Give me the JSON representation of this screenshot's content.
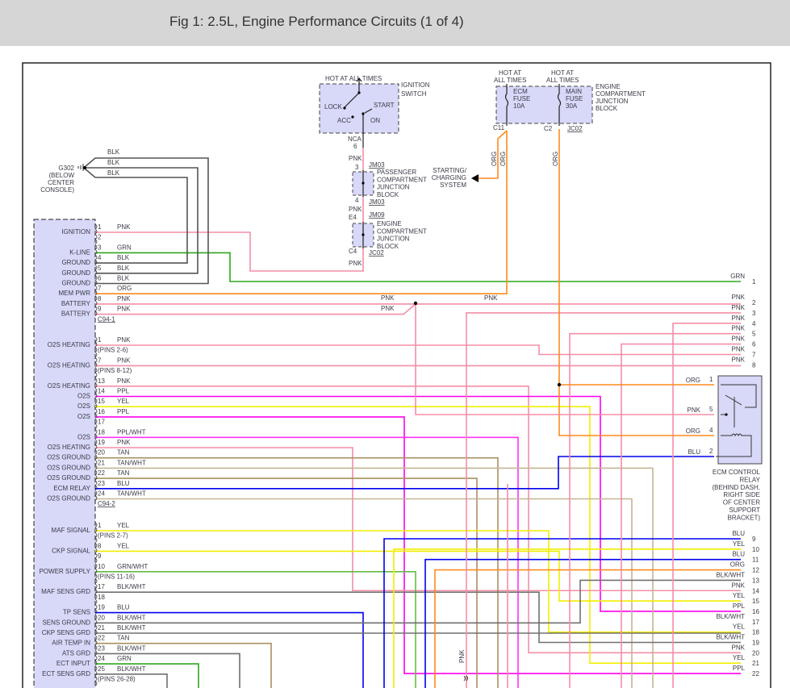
{
  "header": {
    "title": "Fig 1: 2.5L, Engine Performance Circuits (1 of 4)"
  },
  "colors": {
    "PNK": "#f58ea6",
    "GRN": "#2ea81e",
    "BLK": "#555555",
    "ORG": "#ff8a1c",
    "YEL": "#f2ee00",
    "PPL": "#ff00ee",
    "BLU": "#0000ee",
    "TAN": "#a89060",
    "TAN/WHT": "#c4b494",
    "BLK/WHT": "#707070",
    "GRN/WHT": "#66bb44",
    "PPL/WHT": "#ff33f5",
    "box": "#d8d8f8"
  },
  "ecm": {
    "groups": [
      {
        "connector": "C94-1",
        "rows": [
          {
            "pin": "1",
            "wire": "PNK",
            "func": "IGNITION"
          },
          {
            "pin": "2",
            "wire": "",
            "func": ""
          },
          {
            "pin": "3",
            "wire": "GRN",
            "func": "K-LINE"
          },
          {
            "pin": "4",
            "wire": "BLK",
            "func": "GROUND"
          },
          {
            "pin": "5",
            "wire": "BLK",
            "func": "GROUND"
          },
          {
            "pin": "6",
            "wire": "BLK",
            "func": "GROUND"
          },
          {
            "pin": "7",
            "wire": "ORG",
            "func": "MEM PWR"
          },
          {
            "pin": "8",
            "wire": "PNK",
            "func": "BATTERY"
          },
          {
            "pin": "9",
            "wire": "PNK",
            "func": "BATTERY"
          }
        ]
      },
      {
        "connector": "C94-2",
        "rows": [
          {
            "pin": "1",
            "wire": "PNK",
            "func": "O2S HEATING"
          },
          {
            "pin": "(PINS 2-6)",
            "wire": "",
            "func": ""
          },
          {
            "pin": "7",
            "wire": "PNK",
            "func": "O2S HEATING"
          },
          {
            "pin": "(PINS 8-12)",
            "wire": "",
            "func": ""
          },
          {
            "pin": "13",
            "wire": "PNK",
            "func": "O2S HEATING"
          },
          {
            "pin": "14",
            "wire": "PPL",
            "func": "O2S"
          },
          {
            "pin": "15",
            "wire": "YEL",
            "func": "O2S"
          },
          {
            "pin": "16",
            "wire": "PPL",
            "func": "O2S"
          },
          {
            "pin": "17",
            "wire": "",
            "func": ""
          },
          {
            "pin": "18",
            "wire": "PPL/WHT",
            "func": "O2S"
          },
          {
            "pin": "19",
            "wire": "PNK",
            "func": "O2S HEATING"
          },
          {
            "pin": "20",
            "wire": "TAN",
            "func": "O2S GROUND"
          },
          {
            "pin": "21",
            "wire": "TAN/WHT",
            "func": "O2S GROUND"
          },
          {
            "pin": "22",
            "wire": "TAN",
            "func": "O2S GROUND"
          },
          {
            "pin": "23",
            "wire": "BLU",
            "func": "ECM RELAY"
          },
          {
            "pin": "24",
            "wire": "TAN/WHT",
            "func": "O2S GROUND"
          }
        ]
      },
      {
        "connector": "",
        "rows": [
          {
            "pin": "1",
            "wire": "YEL",
            "func": "MAF SIGNAL"
          },
          {
            "pin": "(PINS 2-7)",
            "wire": "",
            "func": ""
          },
          {
            "pin": "8",
            "wire": "YEL",
            "func": "CKP SIGNAL"
          },
          {
            "pin": "9",
            "wire": "",
            "func": ""
          },
          {
            "pin": "10",
            "wire": "GRN/WHT",
            "func": "POWER SUPPLY"
          },
          {
            "pin": "(PINS 11-16)",
            "wire": "",
            "func": ""
          },
          {
            "pin": "17",
            "wire": "BLK/WHT",
            "func": "MAF SENS GRD"
          },
          {
            "pin": "18",
            "wire": "",
            "func": ""
          },
          {
            "pin": "19",
            "wire": "BLU",
            "func": "TP SENS"
          },
          {
            "pin": "20",
            "wire": "BLK/WHT",
            "func": "SENS GROUND"
          },
          {
            "pin": "21",
            "wire": "BLK/WHT",
            "func": "CKP SENS GRD"
          },
          {
            "pin": "22",
            "wire": "TAN",
            "func": "AIR TEMP IN"
          },
          {
            "pin": "23",
            "wire": "BLK/WHT",
            "func": "ATS GRD"
          },
          {
            "pin": "24",
            "wire": "GRN",
            "func": "ECT INPUT"
          },
          {
            "pin": "25",
            "wire": "BLK/WHT",
            "func": "ECT SENS GRD"
          },
          {
            "pin": "(PINS 26-28)",
            "wire": "",
            "func": ""
          }
        ]
      }
    ]
  },
  "right_pins": [
    {
      "pin": "1",
      "wire": "GRN"
    },
    {
      "pin": "2",
      "wire": "PNK"
    },
    {
      "pin": "3",
      "wire": "PNK"
    },
    {
      "pin": "4",
      "wire": "PNK"
    },
    {
      "pin": "5",
      "wire": "PNK"
    },
    {
      "pin": "6",
      "wire": "PNK"
    },
    {
      "pin": "7",
      "wire": "PNK"
    },
    {
      "pin": "8",
      "wire": "PNK"
    },
    {
      "pin": "9",
      "wire": "BLU"
    },
    {
      "pin": "10",
      "wire": "YEL"
    },
    {
      "pin": "11",
      "wire": "BLU"
    },
    {
      "pin": "12",
      "wire": "ORG"
    },
    {
      "pin": "13",
      "wire": "BLK/WHT"
    },
    {
      "pin": "14",
      "wire": "PNK"
    },
    {
      "pin": "15",
      "wire": "YEL"
    },
    {
      "pin": "16",
      "wire": "PPL"
    },
    {
      "pin": "17",
      "wire": "BLK/WHT"
    },
    {
      "pin": "18",
      "wire": "YEL"
    },
    {
      "pin": "19",
      "wire": "BLK/WHT"
    },
    {
      "pin": "20",
      "wire": "PNK"
    },
    {
      "pin": "21",
      "wire": "YEL"
    },
    {
      "pin": "22",
      "wire": "PPL"
    }
  ],
  "relay": {
    "label": [
      "ECM CONTROL",
      "RELAY",
      "(BEHIND DASH,",
      "RIGHT SIDE",
      "OF CENTER",
      "SUPPORT",
      "BRACKET)"
    ],
    "pins": [
      {
        "pin": "1",
        "wire": "ORG"
      },
      {
        "pin": "5",
        "wire": "PNK"
      },
      {
        "pin": "4",
        "wire": "ORG"
      },
      {
        "pin": "2",
        "wire": "BLU"
      }
    ]
  },
  "ground": {
    "name": "G302",
    "location": [
      "(BELOW",
      "CENTER",
      "CONSOLE)"
    ],
    "wires": [
      "BLK",
      "BLK",
      "BLK"
    ]
  },
  "ignition_switch": {
    "hot": "HOT AT ALL TIMES",
    "label": [
      "IGNITION",
      "SWITCH"
    ],
    "positions": {
      "lock": "LOCK",
      "start": "START",
      "acc": "ACC",
      "on": "ON"
    },
    "conn": "NCA",
    "pin": "6",
    "wire": "PNK"
  },
  "pass_jb": {
    "label": [
      "PASSENGER",
      "COMPARTMENT",
      "JUNCTION",
      "BLOCK"
    ],
    "pin_in": "3",
    "pin_out": "4",
    "conn_in": "JM03",
    "conn_out": "JM03",
    "wire": "PNK"
  },
  "eng_jb_small": {
    "label": [
      "ENGINE",
      "COMPARTMENT",
      "JUNCTION",
      "BLOCK"
    ],
    "pin_in": "E4",
    "pin_out": "C4",
    "conn_in": "JM09",
    "conn_out": "JC02",
    "wire": "PNK"
  },
  "fuse_block": {
    "hot1": [
      "HOT AT",
      "ALL TIMES"
    ],
    "hot2": [
      "HOT AT",
      "ALL TIMES"
    ],
    "fuse1": [
      "ECM",
      "FUSE",
      "10A"
    ],
    "fuse2": [
      "MAIN",
      "FUSE",
      "30A"
    ],
    "label": [
      "ENGINE",
      "COMPARTMENT",
      "JUNCTION",
      "BLOCK"
    ],
    "pin1": "C11",
    "pin2": "C2",
    "conn": "JC02",
    "wire1": "ORG",
    "wire2": "ORG",
    "wire3": "ORG"
  },
  "starting": [
    "STARTING/",
    "CHARGING",
    "SYSTEM"
  ],
  "mid_labels": {
    "pnk1": "PNK",
    "pnk2": "PNK",
    "pnk3": "PNK",
    "pnk_vert": "PNK"
  }
}
